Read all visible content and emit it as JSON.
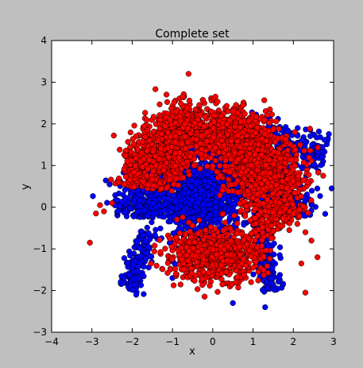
{
  "chart_data": {
    "type": "scatter",
    "title": "Complete set",
    "xlabel": "x",
    "ylabel": "y",
    "xlim": [
      -4,
      3
    ],
    "ylim": [
      -3,
      4
    ],
    "xticks": [
      -4,
      -3,
      -2,
      -1,
      0,
      1,
      2,
      3
    ],
    "yticks": [
      -3,
      -2,
      -1,
      0,
      1,
      2,
      3,
      4
    ],
    "xtick_labels": [
      "−4",
      "−3",
      "−2",
      "−1",
      "0",
      "1",
      "2",
      "3"
    ],
    "ytick_labels": [
      "−3",
      "−2",
      "−1",
      "0",
      "1",
      "2",
      "3",
      "4"
    ],
    "grid": false,
    "legend": "none",
    "series": [
      {
        "color": "#0000ff",
        "clusters": [
          {
            "shape": "arch",
            "cx": 0.0,
            "cy": -0.35,
            "rx": 1.9,
            "ry": 1.2,
            "thickness": 0.45,
            "n": 1100
          },
          {
            "shape": "blob",
            "cx": -0.3,
            "cy": 0.1,
            "sx": 0.5,
            "sy": 0.5,
            "n": 700
          },
          {
            "shape": "band",
            "x0": 0.8,
            "y0": 1.9,
            "x1": 2.8,
            "y1": 1.2,
            "width": 0.22,
            "n": 260
          },
          {
            "shape": "band",
            "x0": -1.6,
            "y0": -0.6,
            "x1": -2.1,
            "y1": -2.0,
            "width": 0.15,
            "n": 140
          },
          {
            "shape": "band",
            "x0": 1.2,
            "y0": -0.5,
            "x1": 1.5,
            "y1": -2.0,
            "width": 0.15,
            "n": 140
          }
        ],
        "outliers": [
          [
            -1.9,
            -2.1
          ],
          [
            -2.2,
            -1.7
          ],
          [
            0.5,
            -2.3
          ],
          [
            1.3,
            -2.4
          ],
          [
            -1.0,
            -1.7
          ],
          [
            2.6,
            1.4
          ],
          [
            2.7,
            1.2
          ]
        ]
      },
      {
        "color": "#ff0000",
        "clusters": [
          {
            "shape": "arch",
            "cx": 0.0,
            "cy": 0.3,
            "rx": 1.75,
            "ry": 1.55,
            "thickness": 0.4,
            "n": 1500
          },
          {
            "shape": "band",
            "x0": 0.4,
            "y0": 1.9,
            "x1": 1.7,
            "y1": -0.5,
            "width": 0.4,
            "n": 700
          },
          {
            "shape": "blob",
            "cx": 0.0,
            "cy": -1.15,
            "sx": 0.6,
            "sy": 0.3,
            "n": 700
          },
          {
            "shape": "band",
            "x0": -0.3,
            "y0": 2.2,
            "x1": -2.0,
            "y1": 0.9,
            "width": 0.35,
            "n": 400
          }
        ],
        "outliers": [
          [
            -0.6,
            3.2
          ],
          [
            -3.05,
            -0.85
          ],
          [
            -2.9,
            -0.15
          ],
          [
            -2.7,
            -0.1
          ],
          [
            -2.5,
            0.1
          ],
          [
            -2.8,
            0.05
          ],
          [
            2.3,
            -2.05
          ],
          [
            2.6,
            -1.2
          ],
          [
            2.45,
            -0.8
          ],
          [
            2.2,
            -1.35
          ],
          [
            1.9,
            -0.55
          ],
          [
            2.1,
            -0.4
          ],
          [
            -0.9,
            2.3
          ],
          [
            0.5,
            2.3
          ],
          [
            0.75,
            2.45
          ],
          [
            2.3,
            -0.6
          ]
        ]
      }
    ]
  }
}
